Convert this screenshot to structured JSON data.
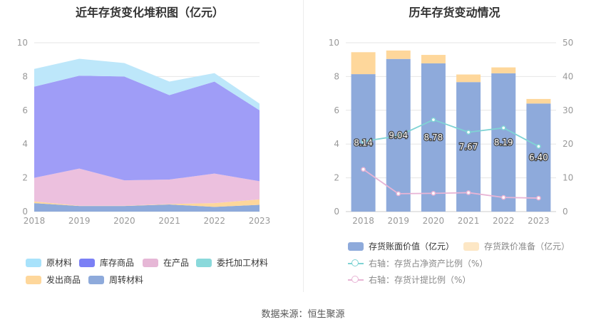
{
  "left": {
    "title": "近年存货变化堆积图（亿元）",
    "chart_data": {
      "type": "area",
      "stacked": true,
      "categories": [
        "2018",
        "2019",
        "2020",
        "2021",
        "2022",
        "2023"
      ],
      "ylim": [
        0,
        10
      ],
      "yticks": [
        "0",
        "2",
        "4",
        "6",
        "8",
        "10"
      ],
      "grid": true,
      "series": [
        {
          "name": "周转材料",
          "color": "#8eaadb",
          "values": [
            0.5,
            0.33,
            0.33,
            0.42,
            0.28,
            0.4
          ]
        },
        {
          "name": "发出商品",
          "color": "#fed79b",
          "values": [
            0.1,
            0.02,
            0.02,
            0.03,
            0.22,
            0.32
          ]
        },
        {
          "name": "委托加工材料",
          "color": "#8ad9db",
          "values": [
            0.0,
            0.0,
            0.0,
            0.0,
            0.0,
            0.0
          ]
        },
        {
          "name": "在产品",
          "color": "#ecc0de",
          "values": [
            1.4,
            2.2,
            1.5,
            1.45,
            1.75,
            1.08
          ]
        },
        {
          "name": "库存商品",
          "color": "#9f9df7",
          "values": [
            5.4,
            5.5,
            6.15,
            5.0,
            5.45,
            4.2
          ]
        },
        {
          "name": "原材料",
          "color": "#bde7fa",
          "values": [
            1.05,
            1.0,
            0.8,
            0.8,
            0.5,
            0.4
          ]
        }
      ]
    },
    "legend": [
      {
        "label": "原材料",
        "color": "#a8e2fb"
      },
      {
        "label": "库存商品",
        "color": "#7b80f5"
      },
      {
        "label": "在产品",
        "color": "#e6b7d6"
      },
      {
        "label": "委托加工材料",
        "color": "#8ad9db"
      },
      {
        "label": "发出商品",
        "color": "#fed79b"
      },
      {
        "label": "周转材料",
        "color": "#8eaadb"
      }
    ]
  },
  "right": {
    "title": "历年存货变动情况",
    "chart_data": {
      "type": "bar",
      "stacked": true,
      "categories": [
        "2018",
        "2019",
        "2020",
        "2021",
        "2022",
        "2023"
      ],
      "ylim_left": [
        0,
        10
      ],
      "yticks_left": [
        "0",
        "2",
        "4",
        "6",
        "8",
        "10"
      ],
      "ylim_right": [
        0,
        50
      ],
      "yticks_right": [
        "0",
        "10",
        "20",
        "30",
        "40",
        "50"
      ],
      "bars": [
        {
          "name": "存货账面价值（亿元）",
          "color": "#8eaadb",
          "values": [
            8.14,
            9.04,
            8.78,
            7.67,
            8.19,
            6.4
          ],
          "labels": [
            "8.14",
            "9.04",
            "8.78",
            "7.67",
            "8.19",
            "6.40"
          ]
        },
        {
          "name": "存货跌价准备（亿元）",
          "color": "#fed79b",
          "values": [
            1.3,
            0.5,
            0.5,
            0.45,
            0.35,
            0.27
          ]
        }
      ],
      "lines": [
        {
          "name": "右轴：存货占净资产比例（%）",
          "color": "#7fd3d4",
          "values": [
            20.8,
            22.4,
            27.2,
            23.5,
            24.8,
            19.3
          ]
        },
        {
          "name": "右轴：存货计提比例（%）",
          "color": "#e8b4d5",
          "values": [
            12.5,
            5.3,
            5.4,
            5.6,
            4.2,
            4.0
          ]
        }
      ]
    },
    "legend": [
      {
        "label": "存货账面价值（亿元）",
        "color": "#8eaadb",
        "kind": "box"
      },
      {
        "label": "存货跌价准备（亿元）",
        "color": "#fde7c5",
        "kind": "box"
      },
      {
        "label": "右轴：存货占净资产比例（%）",
        "color": "#7fd3d4",
        "kind": "line"
      },
      {
        "label": "右轴：存货计提比例（%）",
        "color": "#e8b4d5",
        "kind": "line"
      }
    ]
  },
  "source": "数据来源：恒生聚源"
}
